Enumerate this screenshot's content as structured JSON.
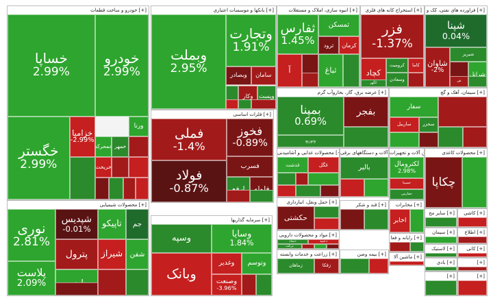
{
  "sectors": [
    {
      "title": "خودرو و ساخت قطعات [+]",
      "tiles": [
        {
          "s": "خودرو",
          "p": "2.99%",
          "c": "g2"
        },
        {
          "s": "خساپا",
          "p": "2.99%",
          "c": "g2"
        },
        {
          "s": "خگستر",
          "p": "2.99%",
          "c": "g2"
        },
        {
          "s": "خزامیا",
          "p": "-2.99%",
          "c": "r3"
        },
        {
          "s": "",
          "p": "",
          "c": "g1"
        },
        {
          "s": "ورنا",
          "p": "",
          "c": "g2"
        },
        {
          "s": "خمهر",
          "p": "",
          "c": "g1"
        },
        {
          "s": "خمحرکه",
          "p": "",
          "c": "g2"
        },
        {
          "s": "",
          "p": "",
          "c": "r2"
        },
        {
          "s": "خریخت",
          "p": "",
          "c": "r3"
        },
        {
          "s": "",
          "p": "",
          "c": "r2"
        },
        {
          "s": "",
          "p": "",
          "c": "r3"
        },
        {
          "s": "",
          "p": "",
          "c": "r1"
        },
        {
          "s": "",
          "p": "",
          "c": "g1"
        },
        {
          "s": "",
          "p": "",
          "c": "r2"
        },
        {
          "s": "",
          "p": "",
          "c": "r3"
        }
      ]
    },
    {
      "title": "بانکها و موسسات اعتباری [+]",
      "tiles": [
        {
          "s": "وبملت",
          "p": "2.95%",
          "c": "g2"
        },
        {
          "s": "وتجارت",
          "p": "1.91%",
          "c": "g2"
        },
        {
          "s": "وبصادر",
          "p": "",
          "c": "r1"
        },
        {
          "s": "سامان",
          "p": "",
          "c": "r2"
        },
        {
          "s": "",
          "p": "",
          "c": "g1"
        },
        {
          "s": "وکار",
          "p": "",
          "c": "r2"
        },
        {
          "s": "وپست",
          "p": "",
          "c": "g1"
        },
        {
          "s": "",
          "p": "",
          "c": "r3"
        },
        {
          "s": "",
          "p": "",
          "c": "g1"
        },
        {
          "s": "",
          "p": "",
          "c": "r2"
        }
      ]
    },
    {
      "title": "انبوه سازی، املاک و مستغلات [+]",
      "tiles": [
        {
          "s": "ثفارس",
          "p": "1.45%",
          "c": "g2"
        },
        {
          "s": "ثمسکن",
          "p": "",
          "c": "g2"
        },
        {
          "s": "ثرود",
          "p": "",
          "c": "r1"
        },
        {
          "s": "کرمان",
          "p": "",
          "c": "r3"
        },
        {
          "s": "آ",
          "p": "",
          "c": "r3"
        },
        {
          "s": "",
          "p": "",
          "c": "r1"
        },
        {
          "s": "ثباغ",
          "p": "",
          "c": "g2"
        },
        {
          "s": "",
          "p": "",
          "c": "g1"
        },
        {
          "s": "",
          "p": "",
          "c": "r2"
        }
      ]
    },
    {
      "title": "استخراج کانه های فلزی [+]",
      "tiles": [
        {
          "s": "فزر",
          "p": "-1.37%",
          "c": "r2"
        },
        {
          "s": "کچاد",
          "p": "",
          "c": "r3"
        },
        {
          "s": "کرومیت",
          "p": "",
          "c": "g1"
        },
        {
          "s": "کاما",
          "p": "",
          "c": "r3"
        },
        {
          "s": "وسعادن",
          "p": "",
          "c": "g1"
        },
        {
          "s": "",
          "p": "",
          "c": "r2"
        },
        {
          "s": "کگهر",
          "p": "",
          "c": "g1"
        }
      ]
    },
    {
      "title": "فراورده های نفتی، کک و [+]",
      "tiles": [
        {
          "s": "شپنا",
          "p": "0.04%",
          "c": "g0"
        },
        {
          "s": "شبریز",
          "p": "",
          "c": "g1"
        },
        {
          "s": "شاوان",
          "p": "-2%",
          "c": "r2"
        },
        {
          "s": "",
          "p": "",
          "c": "r1"
        },
        {
          "s": "شرانل",
          "p": "",
          "c": "g2"
        },
        {
          "s": "ش",
          "p": "",
          "c": "r2"
        },
        {
          "s": "",
          "p": "",
          "c": "g1"
        }
      ]
    },
    {
      "title": "سیمان، آهک و گچ [+]",
      "tiles": [
        {
          "s": "سفار",
          "p": "",
          "c": "g2"
        },
        {
          "s": "ساربیل",
          "p": "",
          "c": "r3"
        },
        {
          "s": "سخزر",
          "p": "",
          "c": "g1"
        },
        {
          "s": "",
          "p": "",
          "c": "r2"
        },
        {
          "s": "",
          "p": "",
          "c": "g2"
        },
        {
          "s": "",
          "p": "",
          "c": "r1"
        },
        {
          "s": "",
          "p": "",
          "c": "g1"
        },
        {
          "s": "",
          "p": "",
          "c": "r2"
        }
      ]
    },
    {
      "title": "عرضه برق، گاز، بخاروآب گرم [+]",
      "tiles": [
        {
          "s": "بمپنا",
          "p": "0.69%",
          "c": "g1"
        },
        {
          "s": "وتوزیع",
          "p": "",
          "c": "g1"
        },
        {
          "s": "بفجر",
          "p": "",
          "c": "r1"
        },
        {
          "s": "",
          "p": "",
          "c": "g1"
        }
      ]
    },
    {
      "title": "محصولات کاغذی [+]",
      "tiles": [
        {
          "s": "چکاپا",
          "p": "",
          "c": "r1"
        },
        {
          "s": "",
          "p": "",
          "c": "g2"
        }
      ]
    },
    {
      "title": "فلزات اساسی [+]",
      "tiles": [
        {
          "s": "فملی",
          "p": "-1.4%",
          "c": "r2"
        },
        {
          "s": "فولاد",
          "p": "-0.87%",
          "c": "r0"
        },
        {
          "s": "فخوز",
          "p": "-0.89%",
          "c": "r1"
        },
        {
          "s": "فسرب",
          "p": "",
          "c": "r1"
        },
        {
          "s": "ارفع",
          "p": "",
          "c": "g1"
        },
        {
          "s": "فلوله",
          "p": "",
          "c": "r1"
        },
        {
          "s": "",
          "p": "",
          "c": "r2"
        },
        {
          "s": "",
          "p": "",
          "c": "g1"
        }
      ]
    },
    {
      "title": "محصولات غذایی و آشامیدنی [+]",
      "tiles": [
        {
          "s": "غدشت",
          "p": "",
          "c": "g2"
        },
        {
          "s": "غگل",
          "p": "",
          "c": "r3"
        },
        {
          "s": "",
          "p": "",
          "c": "g1"
        },
        {
          "s": "",
          "p": "",
          "c": "r2"
        },
        {
          "s": "",
          "p": "",
          "c": "g2"
        },
        {
          "s": "",
          "p": "",
          "c": "r3"
        },
        {
          "s": "",
          "p": "",
          "c": "g1"
        },
        {
          "s": "",
          "p": "",
          "c": "r1"
        }
      ]
    },
    {
      "title": "ماشین آلات و دستگاههای برقی [+]",
      "tiles": [
        {
          "s": "بالبر",
          "p": "",
          "c": "g1"
        },
        {
          "s": "",
          "p": "",
          "c": "r3"
        },
        {
          "s": "",
          "p": "",
          "c": "g2"
        }
      ]
    },
    {
      "title": "ماشین آلات و تجهیزات [+]",
      "tiles": [
        {
          "s": "لکترومال",
          "p": "2.98%",
          "c": "g2"
        },
        {
          "s": "حسیتا",
          "p": "",
          "c": "r3"
        },
        {
          "s": "حفارس",
          "p": "",
          "c": "g1"
        }
      ]
    },
    {
      "title": "حمل ونقل، انبارداری [+]",
      "tiles": [
        {
          "s": "حکشتی",
          "p": "",
          "c": "r1"
        },
        {
          "s": "",
          "p": "",
          "c": "g1"
        },
        {
          "s": "",
          "p": "",
          "c": "r3"
        }
      ]
    },
    {
      "title": "محصولات شیمیایی [+]",
      "tiles": [
        {
          "s": "نوری",
          "p": "2.81%",
          "c": "g2"
        },
        {
          "s": "شپدیس",
          "p": "-0.01%",
          "c": "r0"
        },
        {
          "s": "پترول",
          "p": "",
          "c": "r2"
        },
        {
          "s": "تاپیکو",
          "p": "",
          "c": "g2"
        },
        {
          "s": "جم",
          "p": "",
          "c": "g0"
        },
        {
          "s": "پارس",
          "p": "",
          "c": "g2"
        },
        {
          "s": "شیراز",
          "p": "",
          "c": "r3"
        },
        {
          "s": "شفن",
          "p": "",
          "c": "g2"
        },
        {
          "s": "",
          "p": "",
          "c": "r2"
        },
        {
          "s": "",
          "p": "",
          "c": "g1"
        },
        {
          "s": "پلاست",
          "p": "2.09%",
          "c": "g2"
        },
        {
          "s": "",
          "p": "",
          "c": "r1"
        }
      ]
    },
    {
      "title": "سرمایه گذاریها [+]",
      "tiles": [
        {
          "s": "وسپه",
          "p": "",
          "c": "g1"
        },
        {
          "s": "وسایا",
          "p": "1.84%",
          "c": "g2"
        },
        {
          "s": "وبانک",
          "p": "",
          "c": "r3"
        },
        {
          "s": "وغدیر",
          "p": "",
          "c": "r3"
        },
        {
          "s": "وتوسم",
          "p": "",
          "c": "g2"
        },
        {
          "s": "وصنعت",
          "p": "-3.96%",
          "c": "r3"
        },
        {
          "s": "",
          "p": "",
          "c": "r2"
        },
        {
          "s": "",
          "p": "",
          "c": "g1"
        }
      ]
    },
    {
      "title": "مواد و محصولات دارویی [+]",
      "tiles": [
        {
          "s": "دتماد",
          "p": "",
          "c": "g1"
        },
        {
          "s": "دعبید",
          "p": "",
          "c": "r3"
        },
        {
          "s": "برکت",
          "p": "",
          "c": "g1"
        },
        {
          "s": "",
          "p": "",
          "c": "r2"
        },
        {
          "s": "",
          "p": "",
          "c": "g2"
        },
        {
          "s": "",
          "p": "",
          "c": "r1"
        }
      ]
    },
    {
      "title": "قند و شکر [+]",
      "tiles": [
        {
          "s": "",
          "p": "",
          "c": "r1"
        },
        {
          "s": "",
          "p": "",
          "c": "g1"
        }
      ]
    },
    {
      "title": "مخابرات [+]",
      "tiles": [
        {
          "s": "اخابر",
          "p": "",
          "c": "r3"
        },
        {
          "s": "",
          "p": "",
          "c": "g2"
        }
      ]
    },
    {
      "title": "رایانه و فعا [+]",
      "tiles": [
        {
          "s": "",
          "p": "",
          "c": "r2"
        },
        {
          "s": "",
          "p": "",
          "c": "g1"
        }
      ]
    },
    {
      "title": "زراعت و خدمات وابسته [+]",
      "tiles": [
        {
          "s": "زماهان",
          "p": "",
          "c": "g1"
        },
        {
          "s": "زفکا",
          "p": "",
          "c": "r2"
        }
      ]
    },
    {
      "title": "بیمه وصن [+]",
      "tiles": [
        {
          "s": "",
          "p": "",
          "c": "g1"
        },
        {
          "s": "",
          "p": "",
          "c": "r3"
        }
      ]
    },
    {
      "title": "ماشین آلا [+]",
      "tiles": [
        {
          "s": "",
          "p": "",
          "c": "r3"
        }
      ]
    },
    {
      "title": "سایر مح [+]",
      "tiles": [
        {
          "s": "",
          "p": "",
          "c": "g1"
        }
      ]
    },
    {
      "title": "کاشی [+]",
      "tiles": [
        {
          "s": "",
          "p": "",
          "c": "r3"
        }
      ]
    },
    {
      "title": "سیمان [+]",
      "tiles": [
        {
          "s": "",
          "p": "",
          "c": "g2"
        }
      ]
    },
    {
      "title": "اطلاع [+]",
      "tiles": [
        {
          "s": "",
          "p": "",
          "c": "r2"
        }
      ]
    },
    {
      "title": "لاستیک [+]",
      "tiles": [
        {
          "s": "",
          "p": "",
          "c": "g1"
        }
      ]
    },
    {
      "title": "کانی [+]",
      "tiles": [
        {
          "s": "",
          "p": "",
          "c": "r3"
        }
      ]
    },
    {
      "title": "بادی [+]",
      "tiles": [
        {
          "s": "",
          "p": "",
          "c": "g1"
        }
      ]
    },
    {
      "title": "[+]",
      "tiles": [
        {
          "s": "",
          "p": "",
          "c": "r2"
        }
      ]
    },
    {
      "title": "[+]",
      "tiles": [
        {
          "s": "",
          "p": "",
          "c": "g1"
        }
      ]
    },
    {
      "title": "[+]",
      "tiles": [
        {
          "s": "",
          "p": "",
          "c": "r3"
        }
      ]
    }
  ]
}
